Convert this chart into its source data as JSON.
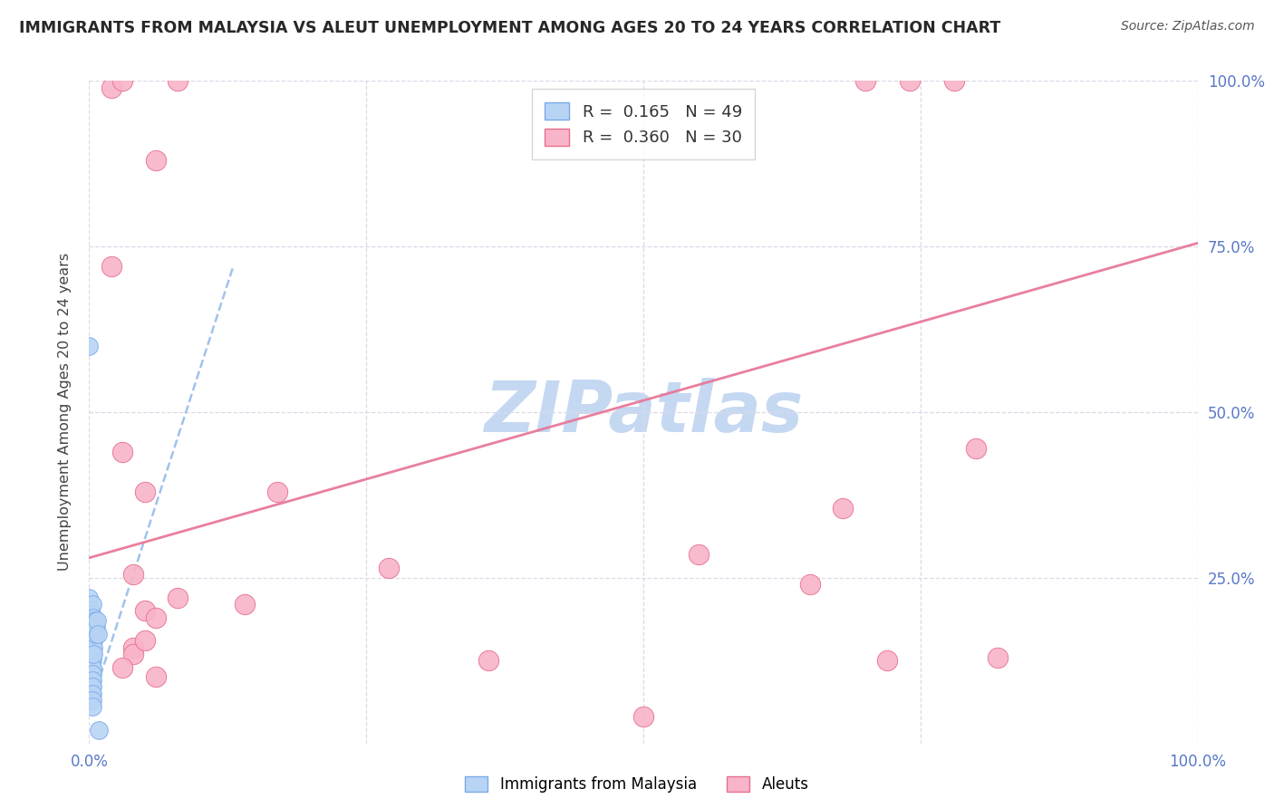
{
  "title": "IMMIGRANTS FROM MALAYSIA VS ALEUT UNEMPLOYMENT AMONG AGES 20 TO 24 YEARS CORRELATION CHART",
  "source": "Source: ZipAtlas.com",
  "ylabel": "Unemployment Among Ages 20 to 24 years",
  "xlim": [
    0,
    1.0
  ],
  "ylim": [
    0,
    1.0
  ],
  "xtick_labels": [
    "0.0%",
    "",
    "",
    "",
    "100.0%"
  ],
  "xtick_vals": [
    0.0,
    0.25,
    0.5,
    0.75,
    1.0
  ],
  "ytick_labels_right": [
    "100.0%",
    "75.0%",
    "50.0%",
    "25.0%"
  ],
  "ytick_vals": [
    1.0,
    0.75,
    0.5,
    0.25
  ],
  "watermark": "ZIPatlas",
  "legend_r1": "R =  0.165",
  "legend_n1": "N = 49",
  "legend_r2": "R =  0.360",
  "legend_n2": "N = 30",
  "blue_scatter": [
    [
      0.0,
      0.6
    ],
    [
      0.0,
      0.22
    ],
    [
      0.001,
      0.2
    ],
    [
      0.001,
      0.185
    ],
    [
      0.001,
      0.175
    ],
    [
      0.001,
      0.165
    ],
    [
      0.001,
      0.155
    ],
    [
      0.001,
      0.145
    ],
    [
      0.002,
      0.195
    ],
    [
      0.002,
      0.185
    ],
    [
      0.002,
      0.175
    ],
    [
      0.002,
      0.165
    ],
    [
      0.002,
      0.155
    ],
    [
      0.002,
      0.145
    ],
    [
      0.002,
      0.135
    ],
    [
      0.002,
      0.125
    ],
    [
      0.002,
      0.115
    ],
    [
      0.002,
      0.105
    ],
    [
      0.002,
      0.095
    ],
    [
      0.002,
      0.085
    ],
    [
      0.002,
      0.075
    ],
    [
      0.003,
      0.21
    ],
    [
      0.003,
      0.185
    ],
    [
      0.003,
      0.175
    ],
    [
      0.003,
      0.165
    ],
    [
      0.003,
      0.155
    ],
    [
      0.003,
      0.145
    ],
    [
      0.003,
      0.135
    ],
    [
      0.003,
      0.125
    ],
    [
      0.003,
      0.115
    ],
    [
      0.003,
      0.105
    ],
    [
      0.003,
      0.095
    ],
    [
      0.003,
      0.085
    ],
    [
      0.003,
      0.075
    ],
    [
      0.003,
      0.065
    ],
    [
      0.003,
      0.055
    ],
    [
      0.004,
      0.19
    ],
    [
      0.004,
      0.175
    ],
    [
      0.004,
      0.165
    ],
    [
      0.004,
      0.155
    ],
    [
      0.004,
      0.145
    ],
    [
      0.004,
      0.135
    ],
    [
      0.005,
      0.185
    ],
    [
      0.005,
      0.175
    ],
    [
      0.005,
      0.165
    ],
    [
      0.006,
      0.175
    ],
    [
      0.007,
      0.185
    ],
    [
      0.008,
      0.165
    ],
    [
      0.009,
      0.02
    ]
  ],
  "pink_scatter": [
    [
      0.02,
      0.99
    ],
    [
      0.03,
      1.0
    ],
    [
      0.08,
      1.0
    ],
    [
      0.06,
      0.88
    ],
    [
      0.02,
      0.72
    ],
    [
      0.03,
      0.44
    ],
    [
      0.05,
      0.38
    ],
    [
      0.17,
      0.38
    ],
    [
      0.08,
      0.22
    ],
    [
      0.14,
      0.21
    ],
    [
      0.05,
      0.2
    ],
    [
      0.06,
      0.19
    ],
    [
      0.27,
      0.265
    ],
    [
      0.04,
      0.255
    ],
    [
      0.55,
      0.285
    ],
    [
      0.65,
      0.24
    ],
    [
      0.36,
      0.125
    ],
    [
      0.5,
      0.04
    ],
    [
      0.72,
      0.125
    ],
    [
      0.8,
      0.445
    ],
    [
      0.68,
      0.355
    ],
    [
      0.82,
      0.13
    ],
    [
      0.7,
      1.0
    ],
    [
      0.74,
      1.0
    ],
    [
      0.78,
      1.0
    ],
    [
      0.04,
      0.145
    ],
    [
      0.04,
      0.135
    ],
    [
      0.05,
      0.155
    ],
    [
      0.03,
      0.115
    ],
    [
      0.06,
      0.1
    ]
  ],
  "blue_trendline_x": [
    0.0,
    0.13
  ],
  "blue_trendline_y": [
    0.05,
    0.72
  ],
  "pink_trendline_x": [
    0.0,
    1.0
  ],
  "pink_trendline_y": [
    0.28,
    0.755
  ],
  "blue_scatter_color": "#b8d4f5",
  "blue_scatter_edge": "#7aaae8",
  "pink_scatter_color": "#f8b4c8",
  "pink_scatter_edge": "#e8708c",
  "blue_line_color": "#90b8e8",
  "pink_line_color": "#e87898",
  "grid_color": "#ddd8e8",
  "axis_tick_color": "#5878c8",
  "title_color": "#282828",
  "watermark_color": "#c5d8f2",
  "bg_color": "#ffffff"
}
